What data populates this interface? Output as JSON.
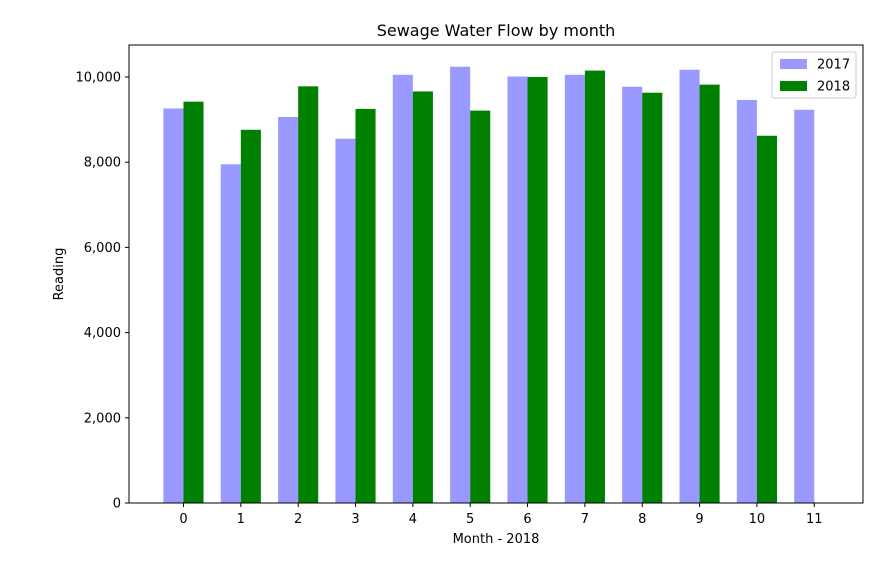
{
  "chart_data": {
    "type": "bar",
    "title": "Sewage Water Flow by month",
    "xlabel": "Month - 2018",
    "ylabel": "Reading",
    "categories": [
      "0",
      "1",
      "2",
      "3",
      "4",
      "5",
      "6",
      "7",
      "8",
      "9",
      "10",
      "11"
    ],
    "ylim": [
      0,
      10750
    ],
    "yticks": [
      0,
      2000,
      4000,
      6000,
      8000,
      10000
    ],
    "ytick_labels": [
      "0",
      "2,000",
      "4,000",
      "6,000",
      "8,000",
      "10,000"
    ],
    "grid": false,
    "legend_position": "top-right",
    "series": [
      {
        "name": "2017",
        "color": "#9999ff",
        "values": [
          9260,
          7950,
          9060,
          8550,
          10050,
          10240,
          10010,
          10050,
          9770,
          10170,
          9460,
          9230
        ]
      },
      {
        "name": "2018",
        "color": "#008000",
        "values": [
          9420,
          8760,
          9780,
          9250,
          9660,
          9210,
          10000,
          10150,
          9630,
          9820,
          8620,
          null
        ]
      }
    ]
  }
}
